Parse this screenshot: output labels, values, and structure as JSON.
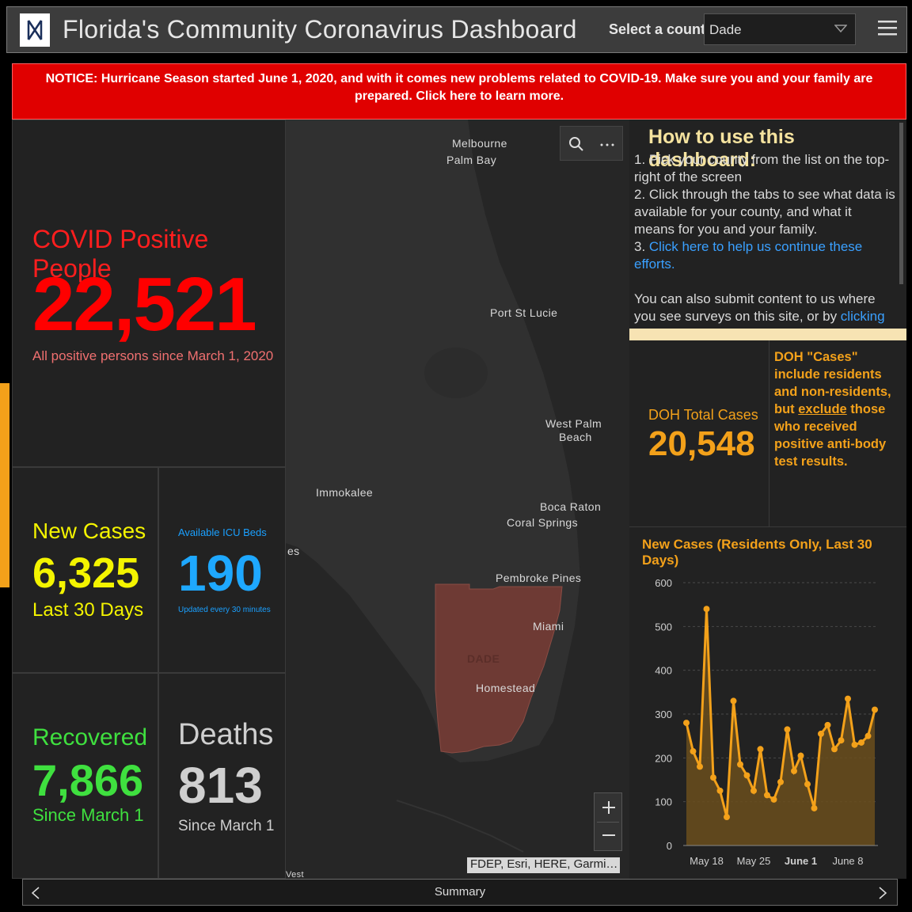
{
  "header": {
    "title": "Florida's Community Coronavirus Dashboard",
    "county_label": "Select a county",
    "county_value": "Dade"
  },
  "notice": "NOTICE: Hurricane Season started June 1, 2020, and with it comes new problems related to COVID-19. Make sure you and your family are prepared. Click here to learn more.",
  "positive": {
    "title": "COVID Positive People",
    "value": "22,521",
    "sub": "All positive persons since March 1, 2020"
  },
  "new_cases": {
    "title": "New Cases",
    "value": "6,325",
    "sub": "Last 30 Days"
  },
  "icu": {
    "title": "Available ICU Beds",
    "value": "190",
    "sub": "Updated every 30 minutes"
  },
  "recovered": {
    "title": "Recovered",
    "value": "7,866",
    "sub": "Since March 1"
  },
  "deaths": {
    "title": "Deaths",
    "value": "813",
    "sub": "Since March 1"
  },
  "map": {
    "places": {
      "melbourne": "Melbourne",
      "palm_bay": "Palm Bay",
      "port_st_lucie": "Port St Lucie",
      "west_palm": "West Palm",
      "west_palm_2": "Beach",
      "immokalee": "Immokalee",
      "boca_raton": "Boca Raton",
      "coral_springs": "Coral Springs",
      "es": "es",
      "pembroke_pines": "Pembroke Pines",
      "miami": "Miami",
      "dade": "DADE",
      "homestead": "Homestead",
      "key_west_partial": "Vest"
    },
    "attribution": "FDEP, Esri, HERE, Garmi…",
    "county_fill": "#6e3a34"
  },
  "howto": {
    "title": "How to use this dashboard:",
    "step1": "1. Pick your county from the list on the top-right of the screen",
    "step2": "2. Click through the tabs to see what data is available for your county, and what it means for you and your family.",
    "step3_prefix": "3. ",
    "step3_link": "Click here to help us continue these efforts.",
    "submit_text": "You can also submit content to us where you see surveys on this site, or by ",
    "submit_link": "clicking"
  },
  "doh": {
    "title": "DOH Total Cases",
    "value": "20,548",
    "note_a": "DOH \"Cases\" include residents and non-residents, but ",
    "note_link": "exclude",
    "note_b": " those who received positive anti-body test results."
  },
  "chart_title": "New Cases (Residents Only, Last 30 Days)",
  "chart_data": {
    "type": "area",
    "title": "New Cases (Residents Only, Last 30 Days)",
    "xlabel": "",
    "ylabel": "",
    "ylim": [
      0,
      600
    ],
    "yticks": [
      0,
      100,
      200,
      300,
      400,
      500,
      600
    ],
    "x_ticks": [
      {
        "label": "May 18",
        "index": 3
      },
      {
        "label": "May 25",
        "index": 10
      },
      {
        "label": "June 1",
        "index": 17
      },
      {
        "label": "June 8",
        "index": 24
      }
    ],
    "series": [
      {
        "values": [
          280,
          215,
          180,
          540,
          155,
          125,
          65,
          330,
          185,
          160,
          125,
          220,
          115,
          105,
          145,
          265,
          170,
          205,
          140,
          85,
          255,
          275,
          220,
          240,
          335,
          230,
          235,
          250,
          310
        ]
      }
    ],
    "grid": "horizontal dashed",
    "color": "#f3a11a"
  },
  "bottom": {
    "label": "Summary"
  }
}
